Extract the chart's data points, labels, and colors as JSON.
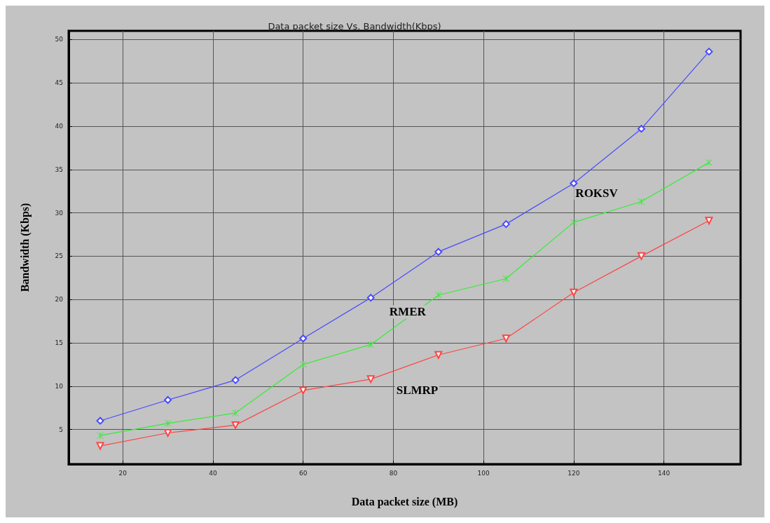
{
  "chart_data": {
    "type": "line",
    "title": "Data packet size Vs. Bandwidth(Kbps)",
    "xlabel": "Data packet size (MB)",
    "ylabel": "Bandwidth (Kbps)",
    "x": [
      15,
      30,
      45,
      60,
      75,
      90,
      105,
      120,
      135,
      150
    ],
    "series": [
      {
        "name": "ROKSV",
        "color": "#4a4aff",
        "marker": "diamond",
        "values": [
          6.0,
          8.4,
          10.7,
          15.5,
          20.2,
          25.5,
          28.7,
          33.4,
          39.7,
          48.6
        ]
      },
      {
        "name": "RMER",
        "color": "#33ee33",
        "marker": "cross",
        "values": [
          4.3,
          5.7,
          6.9,
          12.5,
          14.8,
          20.5,
          22.4,
          28.9,
          31.3,
          35.8
        ]
      },
      {
        "name": "SLMRP",
        "color": "#ff4444",
        "marker": "triangle",
        "values": [
          3.1,
          4.6,
          5.5,
          9.5,
          10.8,
          13.6,
          15.5,
          20.8,
          25.0,
          29.1
        ]
      }
    ],
    "xlim": [
      8,
      157
    ],
    "ylim": [
      1,
      51
    ],
    "xticks": [
      20,
      40,
      60,
      80,
      100,
      120,
      140
    ],
    "yticks": [
      5,
      10,
      15,
      20,
      25,
      30,
      35,
      40,
      45,
      50
    ],
    "grid": true,
    "line_style": "solid"
  }
}
